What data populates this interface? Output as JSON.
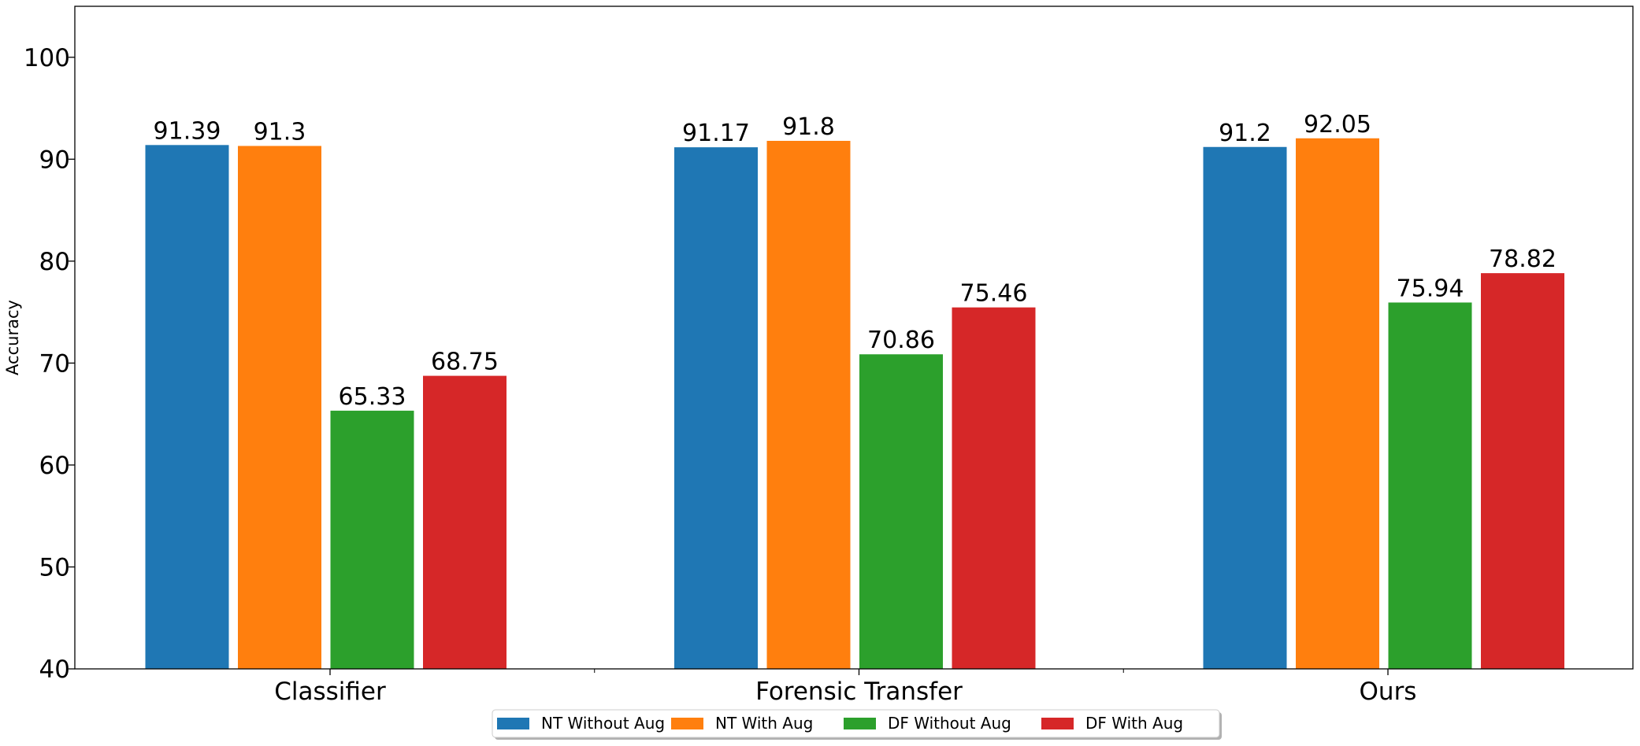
{
  "chart_data": {
    "type": "bar",
    "title": "",
    "xlabel": "",
    "ylabel": "Accuracy",
    "ylim": [
      40,
      105
    ],
    "yticks": [
      40,
      50,
      60,
      70,
      80,
      90,
      100
    ],
    "categories": [
      "Classifier",
      "Forensic Transfer",
      "Ours"
    ],
    "series": [
      {
        "name": "NT Without Aug",
        "color": "#1f77b4",
        "values": [
          91.39,
          91.17,
          91.2
        ]
      },
      {
        "name": "NT With Aug",
        "color": "#ff7f0e",
        "values": [
          91.3,
          91.8,
          92.05
        ]
      },
      {
        "name": "DF Without Aug",
        "color": "#2ca02c",
        "values": [
          65.33,
          70.86,
          75.94
        ]
      },
      {
        "name": "DF With Aug",
        "color": "#d62728",
        "values": [
          68.75,
          75.46,
          78.82
        ]
      }
    ],
    "data_labels": [
      [
        "91.39",
        "91.17",
        "91.2"
      ],
      [
        "91.3",
        "91.8",
        "92.05"
      ],
      [
        "65.33",
        "70.86",
        "75.94"
      ],
      [
        "68.75",
        "75.46",
        "78.82"
      ]
    ],
    "grid": false,
    "legend_position": "bottom-center"
  }
}
